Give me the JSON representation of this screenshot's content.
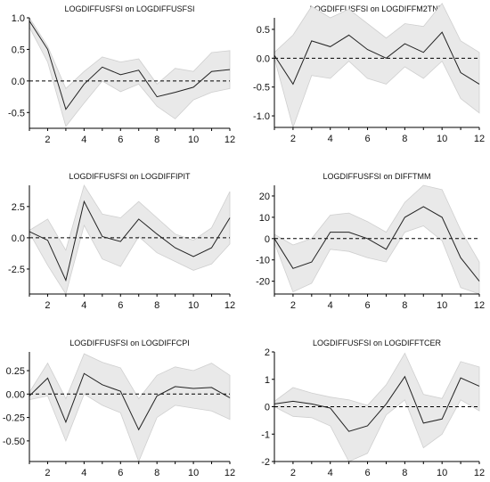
{
  "chart_data": [
    {
      "type": "line",
      "title": "LOGDIFFUSFSI on LOGDIFFUSFSI",
      "xlim": [
        1,
        12
      ],
      "ylim": [
        -0.75,
        1.0
      ],
      "xticks": [
        "2",
        "4",
        "6",
        "8",
        "10",
        "12"
      ],
      "yticks": [
        "-0.5",
        "0.0",
        "0.5",
        "1.0"
      ],
      "ytick_values": [
        -0.5,
        0.0,
        0.5,
        1.0
      ],
      "x": [
        1,
        2,
        3,
        4,
        5,
        6,
        7,
        8,
        9,
        10,
        11,
        12
      ],
      "response": [
        0.95,
        0.5,
        -0.45,
        -0.05,
        0.22,
        0.1,
        0.17,
        -0.25,
        -0.18,
        -0.1,
        0.15,
        0.18
      ],
      "upper": [
        1.0,
        0.55,
        -0.12,
        0.15,
        0.38,
        0.3,
        0.35,
        -0.05,
        0.2,
        0.15,
        0.45,
        0.48
      ],
      "lower": [
        0.85,
        0.3,
        -0.72,
        -0.35,
        0.0,
        -0.17,
        -0.05,
        -0.4,
        -0.6,
        -0.3,
        -0.18,
        -0.12
      ]
    },
    {
      "type": "line",
      "title": "LOGDIFFUSFSI on LOGDIFFM2TND",
      "xlim": [
        1,
        12
      ],
      "ylim": [
        -1.2,
        0.7
      ],
      "xticks": [
        "2",
        "4",
        "6",
        "8",
        "10",
        "12"
      ],
      "yticks": [
        "-1.0",
        "-0.5",
        "0.0",
        "0.5"
      ],
      "ytick_values": [
        -1.0,
        -0.5,
        0.0,
        0.5
      ],
      "x": [
        1,
        2,
        3,
        4,
        5,
        6,
        7,
        8,
        9,
        10,
        11,
        12
      ],
      "response": [
        0.05,
        -0.45,
        0.3,
        0.2,
        0.4,
        0.15,
        0.0,
        0.25,
        0.1,
        0.45,
        -0.25,
        -0.45
      ],
      "upper": [
        0.1,
        0.4,
        0.9,
        0.7,
        0.85,
        0.6,
        0.35,
        0.6,
        0.55,
        0.95,
        0.3,
        0.1
      ],
      "lower": [
        0.0,
        -1.2,
        -0.3,
        -0.35,
        -0.05,
        -0.35,
        -0.45,
        -0.15,
        -0.35,
        -0.05,
        -0.7,
        -0.95
      ]
    },
    {
      "type": "line",
      "title": "LOGDIFFUSFSI on LOGDIFFIPIT",
      "xlim": [
        1,
        12
      ],
      "ylim": [
        -4.5,
        4.2
      ],
      "xticks": [
        "2",
        "4",
        "6",
        "8",
        "10",
        "12"
      ],
      "yticks": [
        "-2.5",
        "0.0",
        "2.5"
      ],
      "ytick_values": [
        -2.5,
        0.0,
        2.5
      ],
      "x": [
        1,
        2,
        3,
        4,
        5,
        6,
        7,
        8,
        9,
        10,
        11,
        12
      ],
      "response": [
        0.5,
        -0.2,
        -3.4,
        2.9,
        0.1,
        -0.3,
        1.5,
        0.3,
        -0.8,
        -1.5,
        -0.8,
        1.6
      ],
      "upper": [
        0.6,
        1.5,
        -1.0,
        4.2,
        1.9,
        1.6,
        2.9,
        1.6,
        0.3,
        -0.2,
        0.8,
        3.7
      ],
      "lower": [
        0.4,
        -2.2,
        -4.5,
        1.0,
        -1.7,
        -2.3,
        0.1,
        -1.2,
        -1.9,
        -2.6,
        -2.1,
        -0.5
      ]
    },
    {
      "type": "line",
      "title": "LOGDIFFUSFSI on DIFFTMM",
      "xlim": [
        1,
        12
      ],
      "ylim": [
        -26,
        25
      ],
      "xticks": [
        "2",
        "4",
        "6",
        "8",
        "10",
        "12"
      ],
      "yticks": [
        "-20",
        "-10",
        "0",
        "10",
        "20"
      ],
      "ytick_values": [
        -20,
        -10,
        0,
        10,
        20
      ],
      "x": [
        1,
        2,
        3,
        4,
        5,
        6,
        7,
        8,
        9,
        10,
        11,
        12
      ],
      "response": [
        0,
        -14,
        -11,
        3,
        3,
        0,
        -5,
        10,
        15,
        10,
        -9,
        -20
      ],
      "upper": [
        2,
        -3,
        0,
        11,
        12,
        8,
        3,
        17,
        25,
        23,
        4,
        -11
      ],
      "lower": [
        -2,
        -25,
        -21,
        -5,
        -6,
        -9,
        -11,
        3,
        6,
        -1,
        -23,
        -26
      ]
    },
    {
      "type": "line",
      "title": "LOGDIFFUSFSI on LOGDIFFCPI",
      "xlim": [
        1,
        12
      ],
      "ylim": [
        -0.72,
        0.45
      ],
      "xticks": [
        "2",
        "4",
        "6",
        "8",
        "10",
        "12"
      ],
      "yticks": [
        "-0.50",
        "-0.25",
        "0.00",
        "0.25"
      ],
      "ytick_values": [
        -0.5,
        -0.25,
        0.0,
        0.25
      ],
      "x": [
        1,
        2,
        3,
        4,
        5,
        6,
        7,
        8,
        9,
        10,
        11,
        12
      ],
      "response": [
        -0.02,
        0.17,
        -0.3,
        0.22,
        0.1,
        0.03,
        -0.38,
        -0.02,
        0.08,
        0.06,
        0.07,
        -0.04
      ],
      "upper": [
        0.02,
        0.33,
        -0.05,
        0.43,
        0.34,
        0.28,
        -0.05,
        0.2,
        0.29,
        0.25,
        0.33,
        0.2
      ],
      "lower": [
        -0.06,
        -0.02,
        -0.5,
        0.0,
        -0.12,
        -0.2,
        -0.72,
        -0.25,
        -0.12,
        -0.15,
        -0.18,
        -0.27
      ]
    },
    {
      "type": "line",
      "title": "LOGDIFFUSFSI on LOGDIFFTCER",
      "xlim": [
        1,
        12
      ],
      "ylim": [
        -2.0,
        2.0
      ],
      "xticks": [
        "2",
        "4",
        "6",
        "8",
        "10",
        "12"
      ],
      "yticks": [
        "-2",
        "-1",
        "0",
        "1",
        "2"
      ],
      "ytick_values": [
        -2,
        -1,
        0,
        1,
        2
      ],
      "x": [
        1,
        2,
        3,
        4,
        5,
        6,
        7,
        8,
        9,
        10,
        11,
        12
      ],
      "response": [
        0.1,
        0.2,
        0.1,
        -0.05,
        -0.9,
        -0.7,
        0.1,
        1.1,
        -0.6,
        -0.45,
        1.05,
        0.75
      ],
      "upper": [
        0.2,
        0.7,
        0.5,
        0.35,
        0.25,
        0.05,
        0.8,
        1.95,
        0.45,
        0.3,
        1.65,
        1.45
      ],
      "lower": [
        0.0,
        -0.35,
        -0.4,
        -0.7,
        -2.0,
        -1.7,
        -0.3,
        0.25,
        -1.5,
        -1.0,
        0.25,
        -0.15
      ]
    }
  ]
}
